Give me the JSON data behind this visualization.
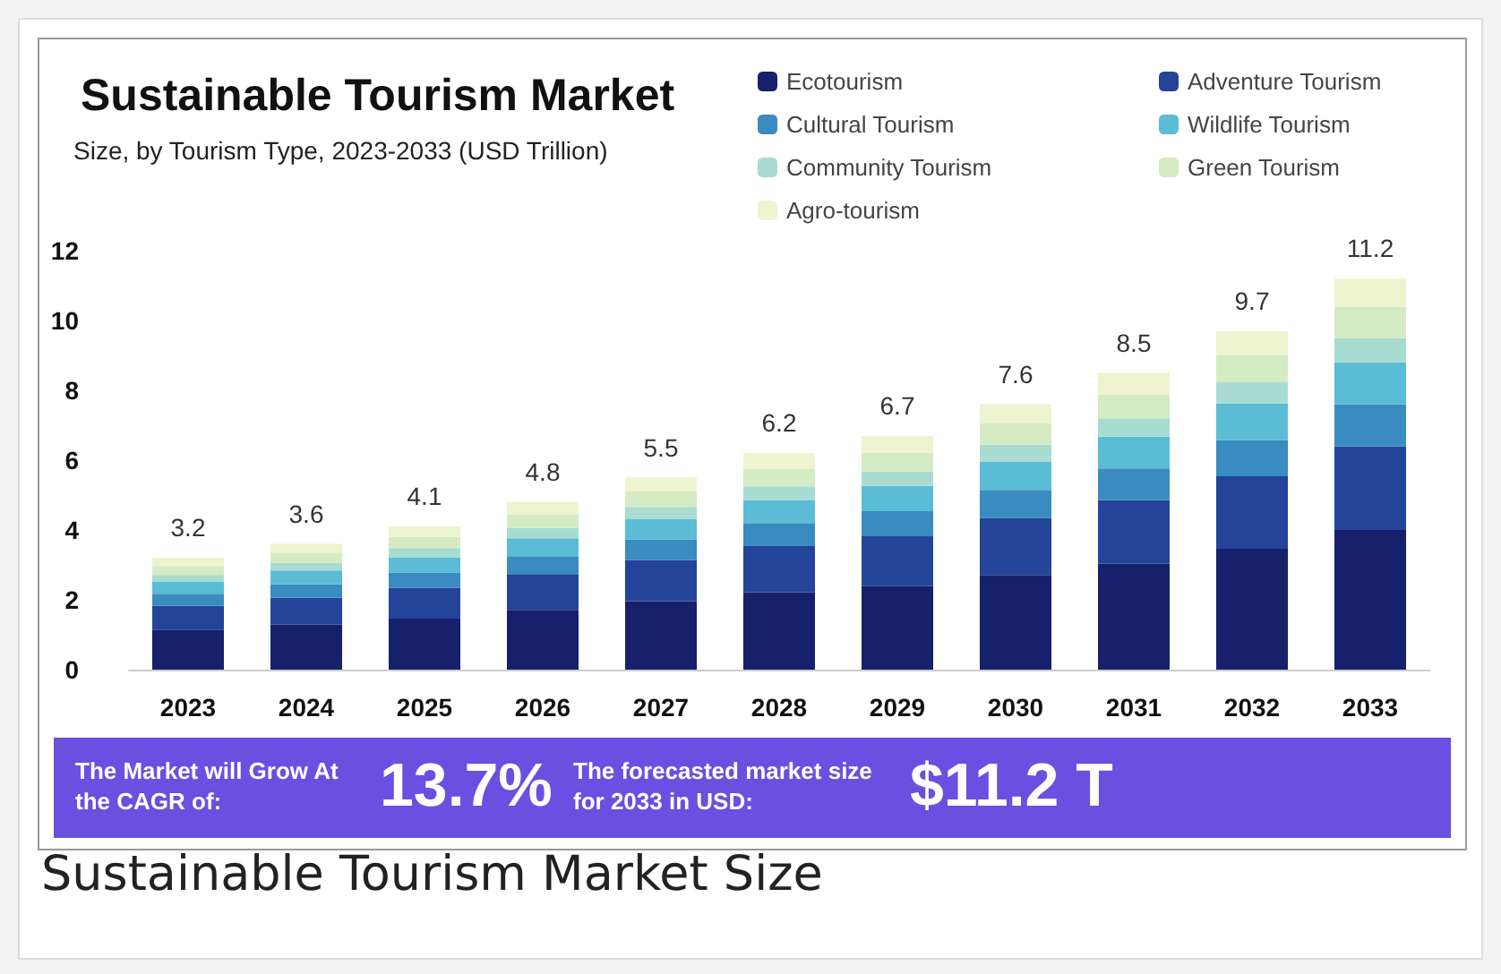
{
  "chart_data": {
    "type": "bar",
    "title": "Sustainable Tourism Market",
    "subtitle": "Size, by Tourism Type, 2023-2033 (USD Trillion)",
    "categories": [
      "2023",
      "2024",
      "2025",
      "2026",
      "2027",
      "2028",
      "2029",
      "2030",
      "2031",
      "2032",
      "2033"
    ],
    "stacked": true,
    "ylim": [
      0,
      12
    ],
    "yticks": [
      0,
      2,
      4,
      6,
      8,
      10,
      12
    ],
    "grid": false,
    "legend": "top right",
    "series": [
      {
        "name": "Ecotourism",
        "color": "#17206b",
        "values": [
          1.15,
          1.29,
          1.46,
          1.71,
          1.96,
          2.21,
          2.39,
          2.71,
          3.03,
          3.46,
          4.0
        ]
      },
      {
        "name": "Adventure Tourism",
        "color": "#24449a",
        "values": [
          0.68,
          0.77,
          0.88,
          1.03,
          1.18,
          1.33,
          1.43,
          1.63,
          1.82,
          2.08,
          2.4
        ]
      },
      {
        "name": "Cultural Tourism",
        "color": "#3a8bc0",
        "values": [
          0.34,
          0.39,
          0.44,
          0.51,
          0.59,
          0.66,
          0.72,
          0.81,
          0.91,
          1.04,
          1.2
        ]
      },
      {
        "name": "Wildlife Tourism",
        "color": "#5bbcd6",
        "values": [
          0.34,
          0.39,
          0.44,
          0.51,
          0.59,
          0.66,
          0.72,
          0.81,
          0.91,
          1.04,
          1.2
        ]
      },
      {
        "name": "Community Tourism",
        "color": "#a8dcd1",
        "values": [
          0.2,
          0.22,
          0.26,
          0.3,
          0.34,
          0.39,
          0.42,
          0.48,
          0.53,
          0.61,
          0.7
        ]
      },
      {
        "name": "Green Tourism",
        "color": "#d5ebc4",
        "values": [
          0.26,
          0.29,
          0.33,
          0.39,
          0.44,
          0.5,
          0.54,
          0.61,
          0.68,
          0.78,
          0.9
        ]
      },
      {
        "name": "Agro-tourism",
        "color": "#eef3d0",
        "values": [
          0.23,
          0.25,
          0.29,
          0.35,
          0.4,
          0.45,
          0.48,
          0.55,
          0.62,
          0.69,
          0.8
        ]
      }
    ],
    "totals": [
      "3.2",
      "3.6",
      "4.1",
      "4.8",
      "5.5",
      "6.2",
      "6.7",
      "7.6",
      "8.5",
      "9.7",
      "11.2"
    ],
    "annotations": [
      "The Market will Grow At the CAGR of:",
      "13.7%",
      "The forecasted market size for 2033 in USD:",
      "$11.2 T",
      "Sustainable Tourism Market Size"
    ]
  }
}
